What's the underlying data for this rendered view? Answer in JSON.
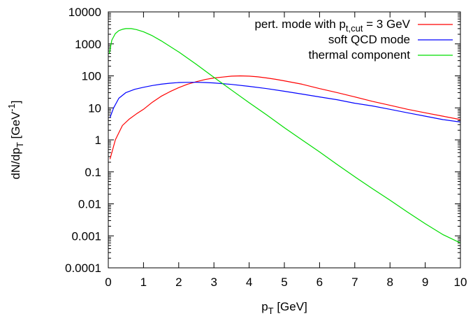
{
  "chart_data": {
    "type": "line",
    "xlabel": {
      "main": "p",
      "sub": "T",
      "rest": " [GeV]"
    },
    "ylabel": {
      "main": "dN/dp",
      "sub": "T",
      "rest": " [GeV",
      "sup": "-1",
      "end": "]"
    },
    "xlim": [
      0,
      10
    ],
    "ylim": [
      0.0001,
      10000
    ],
    "y_scale": "log",
    "x_ticks": [
      "0",
      "1",
      "2",
      "3",
      "4",
      "5",
      "6",
      "7",
      "8",
      "9",
      "10"
    ],
    "y_ticks": [
      "0.0001",
      "0.001",
      "0.01",
      "0.1",
      "1",
      "10",
      "100",
      "1000",
      "10000"
    ],
    "legend_position": "top-right",
    "series": [
      {
        "name": "pert. mode with p_t,cut = 3 GeV",
        "legend": {
          "pre": "pert. mode with p",
          "sub": "t,cut",
          "post": " = 3 GeV"
        },
        "color": "#ff0000",
        "x": [
          0.05,
          0.2,
          0.4,
          0.6,
          0.8,
          1.0,
          1.25,
          1.5,
          1.75,
          2.0,
          2.25,
          2.5,
          2.75,
          3.0,
          3.25,
          3.5,
          3.75,
          4.0,
          4.25,
          4.5,
          4.75,
          5.0,
          5.5,
          6.0,
          6.5,
          7.0,
          7.5,
          8.0,
          8.5,
          9.0,
          9.5,
          10.0
        ],
        "y": [
          0.25,
          1.0,
          2.8,
          4.5,
          6.5,
          9,
          15,
          23,
          32,
          43,
          55,
          66,
          77,
          86,
          92,
          98,
          100,
          98,
          93,
          86,
          78,
          70,
          55,
          40,
          30,
          22,
          16,
          12,
          9,
          7,
          5.5,
          4.3
        ]
      },
      {
        "name": "soft QCD mode",
        "legend": {
          "pre": "soft QCD mode",
          "sub": "",
          "post": ""
        },
        "color": "#0000ff",
        "x": [
          0.05,
          0.15,
          0.3,
          0.5,
          0.75,
          1.0,
          1.25,
          1.5,
          1.75,
          2.0,
          2.25,
          2.5,
          2.75,
          3.0,
          3.5,
          4.0,
          4.5,
          5.0,
          5.5,
          6.0,
          6.5,
          7.0,
          7.5,
          8.0,
          8.5,
          9.0,
          9.5,
          10.0
        ],
        "y": [
          5,
          10,
          20,
          30,
          38,
          44,
          50,
          55,
          59,
          62,
          63,
          63,
          62,
          60,
          54,
          47,
          40,
          33,
          27,
          22,
          18,
          14,
          11.5,
          9,
          7,
          5.5,
          4.3,
          3.6
        ]
      },
      {
        "name": "thermal component",
        "legend": {
          "pre": "thermal component",
          "sub": "",
          "post": ""
        },
        "color": "#00dd00",
        "x": [
          0.03,
          0.1,
          0.2,
          0.3,
          0.4,
          0.5,
          0.65,
          0.8,
          1.0,
          1.25,
          1.5,
          2.0,
          2.5,
          3.0,
          3.5,
          4.0,
          4.5,
          5.0,
          5.5,
          6.0,
          6.5,
          7.0,
          7.5,
          8.0,
          8.5,
          9.0,
          9.5,
          10.0
        ],
        "y": [
          500,
          1300,
          2100,
          2600,
          2850,
          3000,
          3000,
          2800,
          2400,
          1800,
          1250,
          560,
          230,
          90,
          36,
          14.5,
          6.0,
          2.4,
          1.0,
          0.42,
          0.17,
          0.07,
          0.03,
          0.013,
          0.0055,
          0.0024,
          0.0011,
          0.0006
        ]
      }
    ]
  }
}
